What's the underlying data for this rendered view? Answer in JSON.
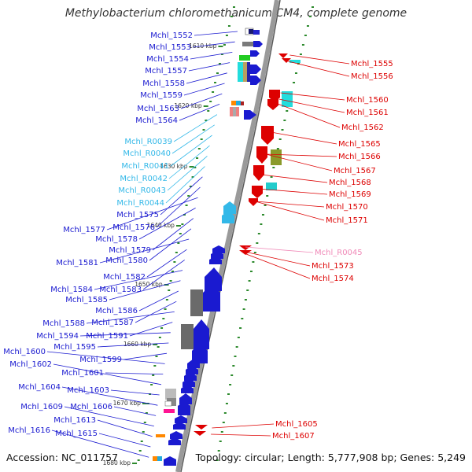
{
  "title": "Methylobacterium chloromethanicum CM4, complete genome",
  "footer": {
    "accession": "Accession: NC_011757",
    "topology": "Topology: circular; Length: 5,777,908 bp; Genes: 5,249"
  },
  "colors": {
    "forward_label": "#1a1ad0",
    "reverse_label": "#dd0000",
    "rna_label_left": "#33b8e8",
    "rna_label_right": "#f08ab8",
    "backbone": "#9a9a9a",
    "tick_mark": "#2d8a2d"
  },
  "scale_ticks": [
    "1610 kbp",
    "1620 kbp",
    "1630 kbp",
    "1640 kbp",
    "1650 kbp",
    "1660 kbp",
    "1670 kbp",
    "1680 kbp"
  ],
  "left_labels": [
    "Mchl_1552",
    "Mchl_1553",
    "Mchl_1554",
    "Mchl_1557",
    "Mchl_1558",
    "Mchl_1559",
    "Mchl_1563",
    "Mchl_1564",
    "Mchl_R0039",
    "Mchl_R0040",
    "Mchl_R0041",
    "Mchl_R0042",
    "Mchl_R0043",
    "Mchl_R0044",
    "Mchl_1575",
    "Mchl_1576",
    "Mchl_1577",
    "Mchl_1578",
    "Mchl_1579",
    "Mchl_1580",
    "Mchl_1581",
    "Mchl_1582",
    "Mchl_1583",
    "Mchl_1584",
    "Mchl_1585",
    "Mchl_1586",
    "Mchl_1587",
    "Mchl_1588",
    "Mchl_1591",
    "Mchl_1594",
    "Mchl_1595",
    "Mchl_1599",
    "Mchl_1600",
    "Mchl_1601",
    "Mchl_1602",
    "Mchl_1603",
    "Mchl_1604",
    "Mchl_1606",
    "Mchl_1609",
    "Mchl_1613",
    "Mchl_1615",
    "Mchl_1616"
  ],
  "right_labels": [
    "Mchl_1555",
    "Mchl_1556",
    "Mchl_1560",
    "Mchl_1561",
    "Mchl_1562",
    "Mchl_1565",
    "Mchl_1566",
    "Mchl_1567",
    "Mchl_1568",
    "Mchl_1569",
    "Mchl_1570",
    "Mchl_1571",
    "Mchl_R0045",
    "Mchl_1573",
    "Mchl_1574",
    "Mchl_1605",
    "Mchl_1607"
  ]
}
